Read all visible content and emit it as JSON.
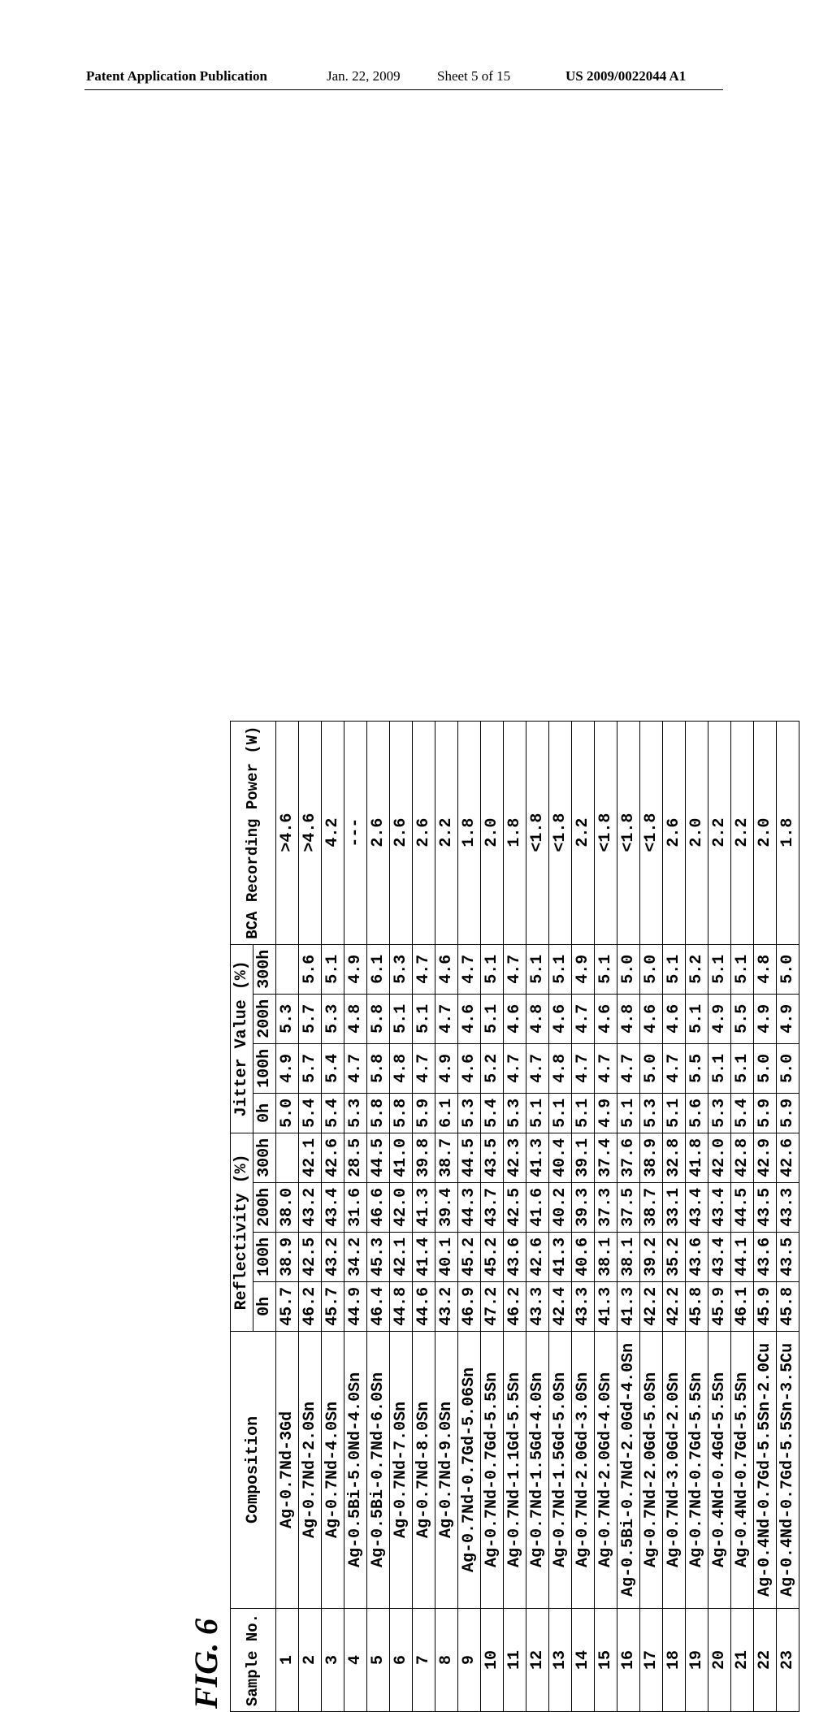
{
  "header": {
    "publication_label": "Patent Application Publication",
    "date": "Jan. 22, 2009",
    "sheet": "Sheet 5 of 15",
    "pub_number": "US 2009/0022044 A1"
  },
  "figure_label": "FIG. 6",
  "table": {
    "columns": {
      "sample_no": "Sample\nNo.",
      "composition": "Composition",
      "reflectivity_group": "Reflectivity (%)",
      "jitter_group": "Jitter Value (%)",
      "bca": "BCA Recording\nPower (W)",
      "hours": [
        "0h",
        "100h",
        "200h",
        "300h"
      ]
    },
    "rows": [
      {
        "n": "1",
        "c": "Ag-0.7Nd-3Gd",
        "r": [
          "45.7",
          "38.9",
          "38.0",
          ""
        ],
        "j": [
          "5.0",
          "4.9",
          "5.3",
          ""
        ],
        "b": ">4.6"
      },
      {
        "n": "2",
        "c": "Ag-0.7Nd-2.0Sn",
        "r": [
          "46.2",
          "42.5",
          "43.2",
          "42.1"
        ],
        "j": [
          "5.4",
          "5.7",
          "5.7",
          "5.6"
        ],
        "b": ">4.6"
      },
      {
        "n": "3",
        "c": "Ag-0.7Nd-4.0Sn",
        "r": [
          "45.7",
          "43.2",
          "43.4",
          "42.6"
        ],
        "j": [
          "5.4",
          "5.4",
          "5.3",
          "5.1"
        ],
        "b": "4.2"
      },
      {
        "n": "4",
        "c": "Ag-0.5Bi-5.0Nd-4.0Sn",
        "r": [
          "44.9",
          "34.2",
          "31.6",
          "28.5"
        ],
        "j": [
          "5.3",
          "4.7",
          "4.8",
          "4.9"
        ],
        "b": "---"
      },
      {
        "n": "5",
        "c": "Ag-0.5Bi-0.7Nd-6.0Sn",
        "r": [
          "46.4",
          "45.3",
          "46.6",
          "44.5"
        ],
        "j": [
          "5.8",
          "5.8",
          "5.8",
          "6.1"
        ],
        "b": "2.6"
      },
      {
        "n": "6",
        "c": "Ag-0.7Nd-7.0Sn",
        "r": [
          "44.8",
          "42.1",
          "42.0",
          "41.0"
        ],
        "j": [
          "5.8",
          "4.8",
          "5.1",
          "5.3"
        ],
        "b": "2.6"
      },
      {
        "n": "7",
        "c": "Ag-0.7Nd-8.0Sn",
        "r": [
          "44.6",
          "41.4",
          "41.3",
          "39.8"
        ],
        "j": [
          "5.9",
          "4.7",
          "5.1",
          "4.7"
        ],
        "b": "2.6"
      },
      {
        "n": "8",
        "c": "Ag-0.7Nd-9.0Sn",
        "r": [
          "43.2",
          "40.1",
          "39.4",
          "38.7"
        ],
        "j": [
          "6.1",
          "4.9",
          "4.7",
          "4.6"
        ],
        "b": "2.2"
      },
      {
        "n": "9",
        "c": "Ag-0.7Nd-0.7Gd-5.06Sn",
        "r": [
          "46.9",
          "45.2",
          "44.3",
          "44.5"
        ],
        "j": [
          "5.3",
          "4.6",
          "4.6",
          "4.7"
        ],
        "b": "1.8"
      },
      {
        "n": "10",
        "c": "Ag-0.7Nd-0.7Gd-5.5Sn",
        "r": [
          "47.2",
          "45.2",
          "43.7",
          "43.5"
        ],
        "j": [
          "5.4",
          "5.2",
          "5.1",
          "5.1"
        ],
        "b": "2.0"
      },
      {
        "n": "11",
        "c": "Ag-0.7Nd-1.1Gd-5.5Sn",
        "r": [
          "46.2",
          "43.6",
          "42.5",
          "42.3"
        ],
        "j": [
          "5.3",
          "4.7",
          "4.6",
          "4.7"
        ],
        "b": "1.8"
      },
      {
        "n": "12",
        "c": "Ag-0.7Nd-1.5Gd-4.0Sn",
        "r": [
          "43.3",
          "42.6",
          "41.6",
          "41.3"
        ],
        "j": [
          "5.1",
          "4.7",
          "4.8",
          "5.1"
        ],
        "b": "<1.8"
      },
      {
        "n": "13",
        "c": "Ag-0.7Nd-1.5Gd-5.0Sn",
        "r": [
          "42.4",
          "41.3",
          "40.2",
          "40.4"
        ],
        "j": [
          "5.1",
          "4.8",
          "4.6",
          "5.1"
        ],
        "b": "<1.8"
      },
      {
        "n": "14",
        "c": "Ag-0.7Nd-2.0Gd-3.0Sn",
        "r": [
          "43.3",
          "40.6",
          "39.3",
          "39.1"
        ],
        "j": [
          "5.1",
          "4.7",
          "4.7",
          "4.9"
        ],
        "b": "2.2"
      },
      {
        "n": "15",
        "c": "Ag-0.7Nd-2.0Gd-4.0Sn",
        "r": [
          "41.3",
          "38.1",
          "37.3",
          "37.4"
        ],
        "j": [
          "4.9",
          "4.7",
          "4.6",
          "5.1"
        ],
        "b": "<1.8"
      },
      {
        "n": "16",
        "c": "Ag-0.5Bi-0.7Nd-2.0Gd-4.0Sn",
        "r": [
          "41.3",
          "38.1",
          "37.5",
          "37.6"
        ],
        "j": [
          "5.1",
          "4.7",
          "4.8",
          "5.0"
        ],
        "b": "<1.8"
      },
      {
        "n": "17",
        "c": "Ag-0.7Nd-2.0Gd-5.0Sn",
        "r": [
          "42.2",
          "39.2",
          "38.7",
          "38.9"
        ],
        "j": [
          "5.3",
          "5.0",
          "4.6",
          "5.0"
        ],
        "b": "<1.8"
      },
      {
        "n": "18",
        "c": "Ag-0.7Nd-3.0Gd-2.0Sn",
        "r": [
          "42.2",
          "35.2",
          "33.1",
          "32.8"
        ],
        "j": [
          "5.1",
          "4.7",
          "4.6",
          "5.1"
        ],
        "b": "2.6"
      },
      {
        "n": "19",
        "c": "Ag-0.7Nd-0.7Gd-5.5Sn",
        "r": [
          "45.8",
          "43.6",
          "43.4",
          "41.8"
        ],
        "j": [
          "5.6",
          "5.5",
          "5.1",
          "5.2"
        ],
        "b": "2.0"
      },
      {
        "n": "20",
        "c": "Ag-0.4Nd-0.4Gd-5.5Sn",
        "r": [
          "45.9",
          "43.4",
          "43.4",
          "42.0"
        ],
        "j": [
          "5.3",
          "5.1",
          "4.9",
          "5.1"
        ],
        "b": "2.2"
      },
      {
        "n": "21",
        "c": "Ag-0.4Nd-0.7Gd-5.5Sn",
        "r": [
          "46.1",
          "44.1",
          "44.5",
          "42.8"
        ],
        "j": [
          "5.4",
          "5.1",
          "5.5",
          "5.1"
        ],
        "b": "2.2"
      },
      {
        "n": "22",
        "c": "Ag-0.4Nd-0.7Gd-5.5Sn-2.0Cu",
        "r": [
          "45.9",
          "43.6",
          "43.5",
          "42.9"
        ],
        "j": [
          "5.9",
          "5.0",
          "4.9",
          "4.8"
        ],
        "b": "2.0"
      },
      {
        "n": "23",
        "c": "Ag-0.4Nd-0.7Gd-5.5Sn-3.5Cu",
        "r": [
          "45.8",
          "43.5",
          "43.3",
          "42.6"
        ],
        "j": [
          "5.9",
          "5.0",
          "4.9",
          "5.0"
        ],
        "b": "1.8"
      }
    ]
  }
}
